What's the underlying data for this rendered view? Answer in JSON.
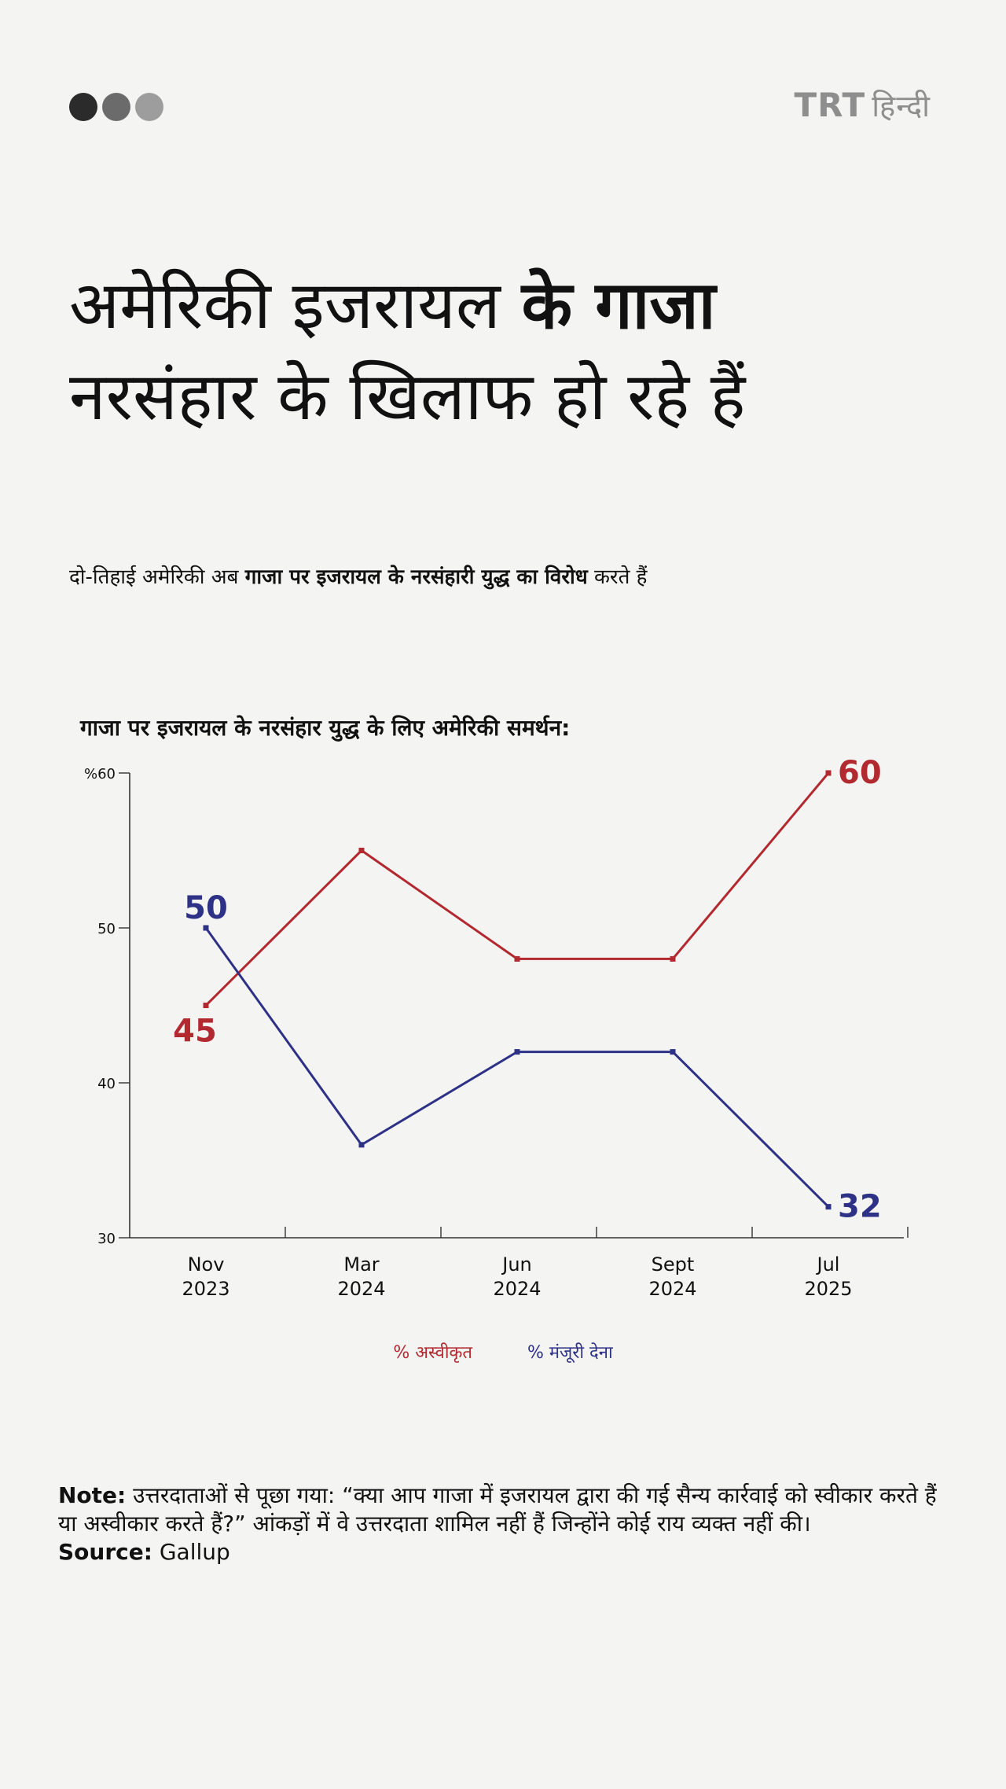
{
  "brand": {
    "name": "TRT",
    "sub": "हिन्दी",
    "dot_colors": [
      "#2b2b2b",
      "#6b6b6b",
      "#9d9d9d"
    ]
  },
  "headline": {
    "part1": "अमेरिकी इजरायल ",
    "part2_bold": "के गाजा",
    "line2": "नरसंहार के खिलाफ हो रहे हैं"
  },
  "subhead": {
    "pre": "दो-तिहाई अमेरिकी अब ",
    "bold": "गाजा पर इजरायल के नरसंहारी युद्ध का विरोध",
    "post": " करते हैं"
  },
  "chart_data": {
    "type": "line",
    "title": "गाजा पर इजरायल के नरसंहार युद्ध के लिए अमेरिकी समर्थन:",
    "categories": [
      [
        "Nov",
        "2023"
      ],
      [
        "Mar",
        "2024"
      ],
      [
        "Jun",
        "2024"
      ],
      [
        "Sept",
        "2024"
      ],
      [
        "Jul",
        "2025"
      ]
    ],
    "ylim": [
      30,
      60
    ],
    "yticks": [
      "30",
      "40",
      "50",
      "%60"
    ],
    "ytick_values": [
      30,
      40,
      50,
      60
    ],
    "grid": false,
    "legend_position": "bottom-center",
    "series": [
      {
        "name": "% अस्वीकृत",
        "color": "#b22a30",
        "values": [
          45,
          55,
          48,
          48,
          60
        ],
        "labels": [
          {
            "index": 0,
            "text": "45",
            "pos": "below"
          },
          {
            "index": 4,
            "text": "60",
            "pos": "right"
          }
        ]
      },
      {
        "name": "% मंजूरी देना",
        "color": "#2e3286",
        "values": [
          50,
          36,
          42,
          42,
          32
        ],
        "labels": [
          {
            "index": 0,
            "text": "50",
            "pos": "above"
          },
          {
            "index": 4,
            "text": "32",
            "pos": "right"
          }
        ]
      }
    ]
  },
  "note": {
    "label": "Note:",
    "text": " उत्तरदाताओं से पूछा गया: “क्या आप गाजा में इजरायल द्वारा की गई सैन्य कार्रवाई को स्वीकार करते हैं या अस्वीकार करते हैं?” आंकड़ों में वे उत्तरदाता शामिल नहीं हैं जिन्होंने कोई राय व्यक्त नहीं की।",
    "source_label": "Source:",
    "source": " Gallup"
  }
}
